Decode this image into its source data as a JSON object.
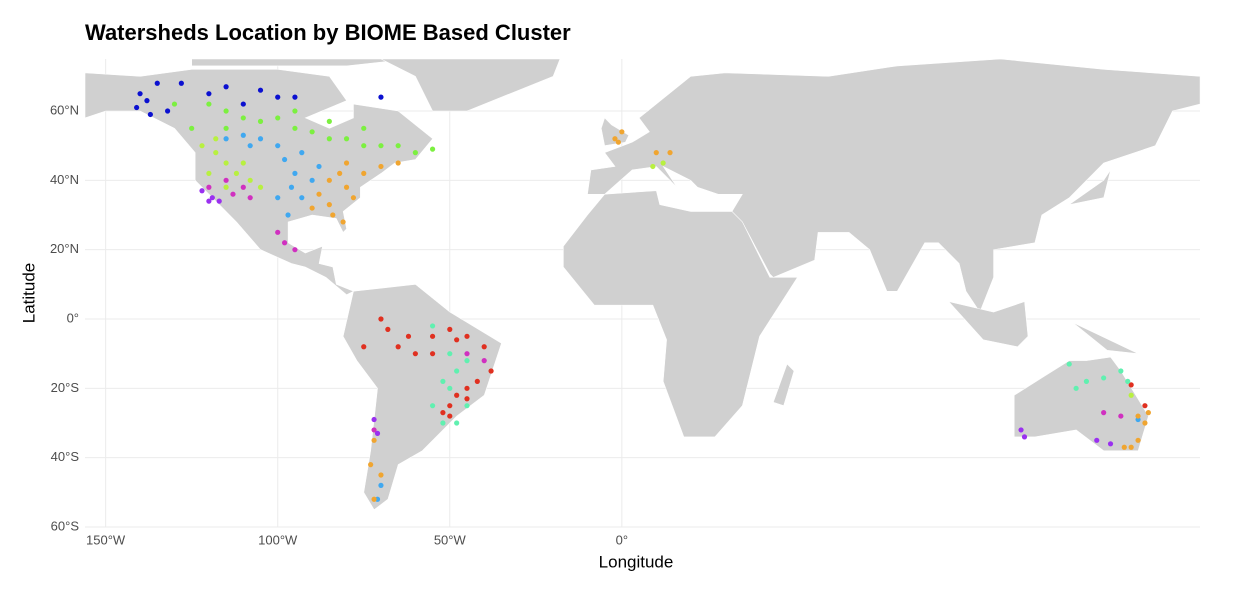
{
  "chart_data": {
    "type": "scatter",
    "title": "Watersheds Location by BIOME Based Cluster",
    "x_label": "Longitude",
    "y_label": "Latitude",
    "xlim": [
      -156,
      168
    ],
    "ylim": [
      -60,
      75
    ],
    "xticks": [
      {
        "value": -150,
        "label": "150°W"
      },
      {
        "value": -100,
        "label": "100°W"
      },
      {
        "value": -50,
        "label": "50°W"
      },
      {
        "value": 0,
        "label": "0°"
      }
    ],
    "yticks": [
      {
        "value": -60,
        "label": "60°S"
      },
      {
        "value": -40,
        "label": "40°S"
      },
      {
        "value": -20,
        "label": "20°S"
      },
      {
        "value": 0,
        "label": "0°"
      },
      {
        "value": 20,
        "label": "20°N"
      },
      {
        "value": 40,
        "label": "40°N"
      },
      {
        "value": 60,
        "label": "60°N"
      }
    ],
    "grid": true,
    "series": [
      {
        "color": "#0b10d0",
        "x": [
          -140,
          -138,
          -135,
          -132,
          -128,
          -120,
          -115,
          -110,
          -105,
          -100,
          -95,
          -70,
          -141,
          -137
        ],
        "y": [
          65,
          63,
          68,
          60,
          68,
          65,
          67,
          62,
          66,
          64,
          64,
          64,
          61,
          59
        ]
      },
      {
        "color": "#7cf040",
        "x": [
          -120,
          -115,
          -110,
          -105,
          -100,
          -95,
          -90,
          -85,
          -80,
          -75,
          -70,
          -65,
          -60,
          -55,
          -125,
          -130,
          -115,
          -95,
          -85,
          -75
        ],
        "y": [
          62,
          60,
          58,
          57,
          58,
          55,
          54,
          52,
          52,
          50,
          50,
          50,
          48,
          49,
          55,
          62,
          55,
          60,
          57,
          55
        ]
      },
      {
        "color": "#b8f040",
        "x": [
          -122,
          -118,
          -115,
          -120,
          -112,
          -108,
          -110,
          -105,
          -115,
          -118,
          9,
          12,
          148
        ],
        "y": [
          50,
          48,
          45,
          42,
          42,
          40,
          45,
          38,
          38,
          52,
          44,
          45,
          -22
        ]
      },
      {
        "color": "#40a8f0",
        "x": [
          -115,
          -110,
          -105,
          -100,
          -98,
          -95,
          -96,
          -100,
          -97,
          -93,
          -90,
          -88,
          -93,
          -108,
          -71,
          -70,
          150
        ],
        "y": [
          52,
          53,
          52,
          50,
          46,
          42,
          38,
          35,
          30,
          35,
          40,
          44,
          48,
          50,
          -52,
          -48,
          -29
        ]
      },
      {
        "color": "#f0a530",
        "x": [
          -85,
          -80,
          -82,
          -75,
          -78,
          -85,
          -88,
          -70,
          -65,
          -80,
          -84,
          -81,
          -90,
          -2,
          0,
          -1,
          10,
          14,
          -72,
          -73,
          -70,
          -72,
          150,
          152,
          150,
          148,
          153,
          146
        ],
        "y": [
          40,
          38,
          42,
          42,
          35,
          33,
          36,
          44,
          45,
          45,
          30,
          28,
          32,
          52,
          54,
          51,
          48,
          48,
          -35,
          -42,
          -45,
          -52,
          -28,
          -30,
          -35,
          -37,
          -27,
          -37
        ]
      },
      {
        "color": "#d030c0",
        "x": [
          -115,
          -110,
          -113,
          -108,
          -100,
          -98,
          -95,
          -120,
          -45,
          -40,
          140,
          145,
          -72
        ],
        "y": [
          40,
          38,
          36,
          35,
          25,
          22,
          20,
          38,
          -10,
          -12,
          -27,
          -28,
          -32
        ]
      },
      {
        "color": "#9a30f0",
        "x": [
          -122,
          -119,
          -117,
          -120,
          -72,
          -71,
          116,
          117,
          138,
          142
        ],
        "y": [
          37,
          35,
          34,
          34,
          -29,
          -33,
          -32,
          -34,
          -35,
          -36
        ]
      },
      {
        "color": "#e03020",
        "x": [
          -70,
          -68,
          -65,
          -60,
          -55,
          -50,
          -48,
          -45,
          -40,
          -38,
          -45,
          -48,
          -50,
          -52,
          -45,
          -42,
          -50,
          -55,
          -62,
          -75,
          148,
          152
        ],
        "y": [
          0,
          -3,
          -8,
          -10,
          -10,
          -3,
          -6,
          -5,
          -8,
          -15,
          -20,
          -22,
          -25,
          -27,
          -23,
          -18,
          -28,
          -5,
          -5,
          -8,
          -19,
          -25
        ]
      },
      {
        "color": "#60f0b0",
        "x": [
          -55,
          -50,
          -48,
          -45,
          -52,
          -50,
          -45,
          -55,
          -52,
          -48,
          130,
          135,
          140,
          145,
          147,
          132
        ],
        "y": [
          -2,
          -10,
          -15,
          -12,
          -18,
          -20,
          -25,
          -25,
          -30,
          -30,
          -13,
          -18,
          -17,
          -15,
          -18,
          -20
        ]
      }
    ]
  }
}
